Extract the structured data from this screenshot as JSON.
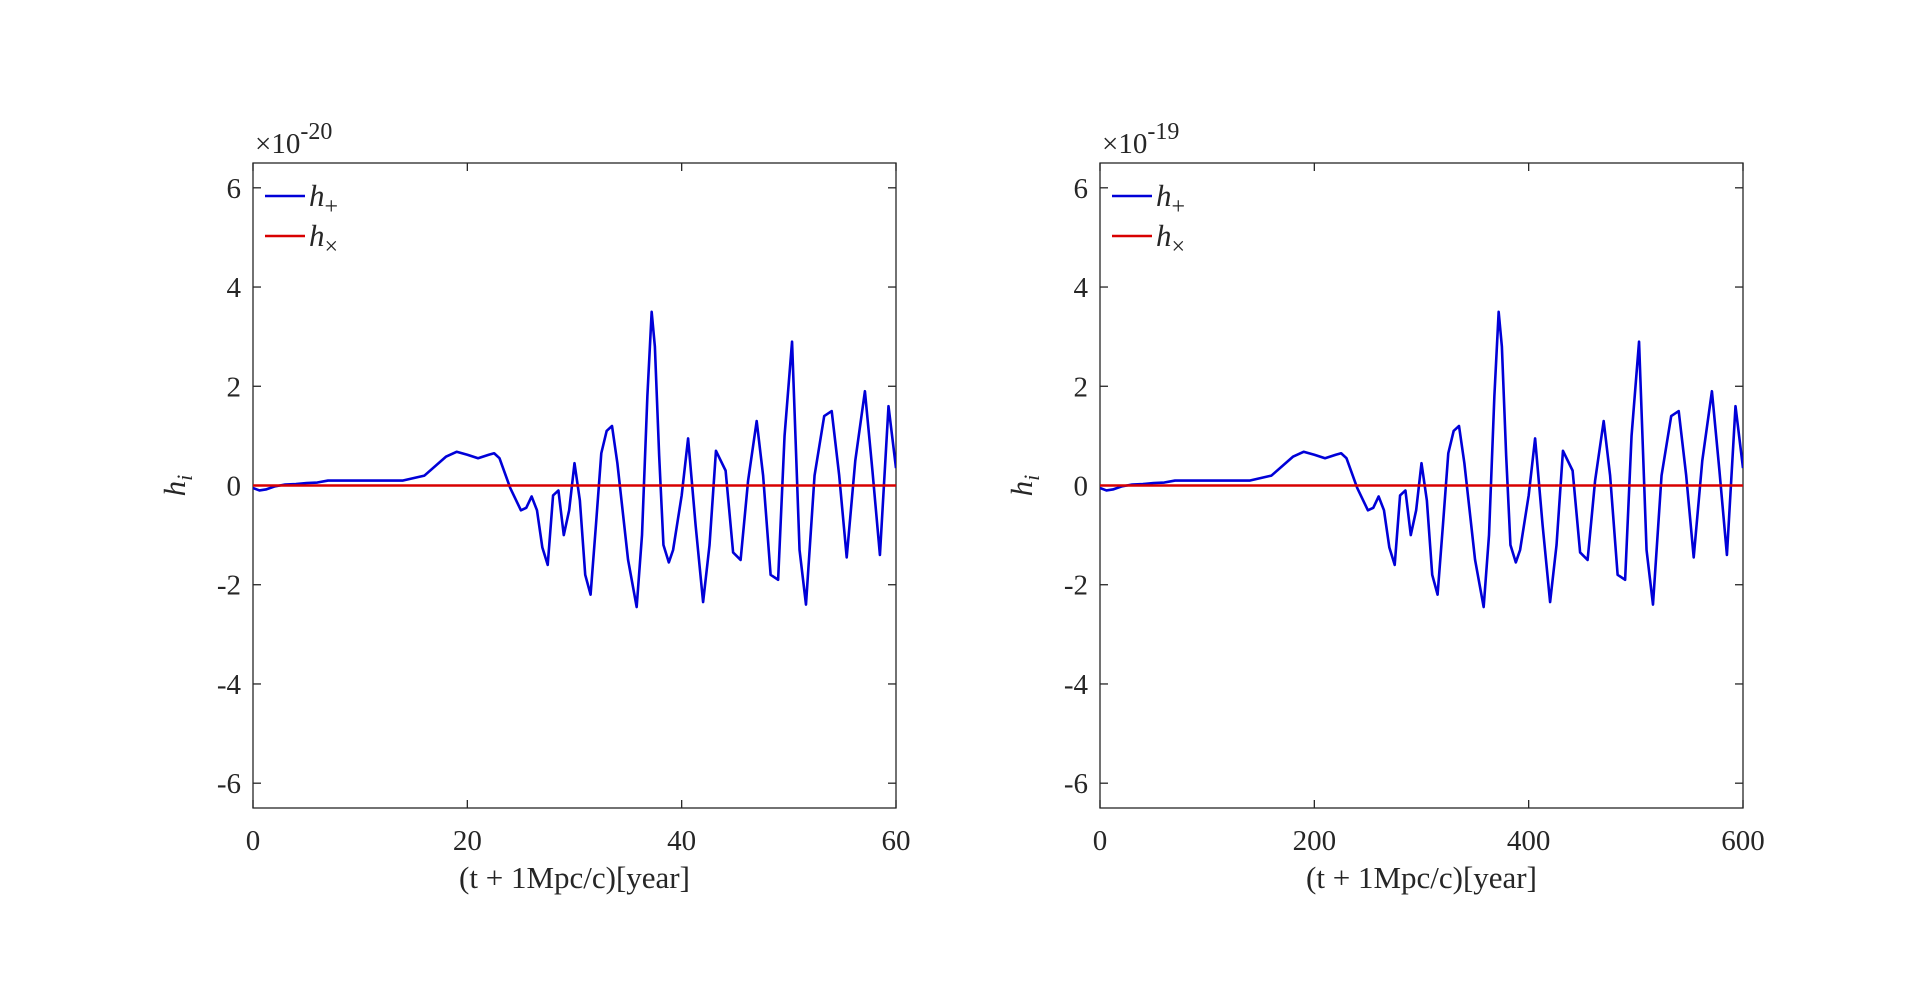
{
  "chart_data": [
    {
      "type": "line",
      "xlabel": "(t + 1Mpc/c)[year]",
      "ylabel": "h",
      "ylabel_sub": "i",
      "y_multiplier": "×10",
      "y_exponent": "-20",
      "xlim": [
        0,
        60
      ],
      "ylim": [
        -6.5,
        6.5
      ],
      "xticks": [
        0,
        20,
        40,
        60
      ],
      "xtick_labels": [
        "0",
        "20",
        "40",
        "60"
      ],
      "yticks": [
        -6,
        -4,
        -2,
        0,
        2,
        4,
        6
      ],
      "ytick_labels": [
        "-6",
        "-4",
        "-2",
        "0",
        "2",
        "4",
        "6"
      ],
      "grid": false,
      "legend_position": "top-left",
      "series": [
        {
          "name": "h",
          "name_sub": "+",
          "color": "#0000d8",
          "x": [
            0,
            0.6,
            1.2,
            2,
            3,
            4,
            5,
            6,
            7,
            8,
            10,
            12,
            14,
            16,
            18,
            19,
            20,
            21,
            22,
            22.5,
            23,
            24,
            25,
            25.5,
            26,
            26.5,
            27,
            27.5,
            28,
            28.5,
            29,
            29.5,
            30,
            30.5,
            31,
            31.5,
            32,
            32.5,
            33,
            33.5,
            34,
            35,
            35.8,
            36.3,
            36.8,
            37.2,
            37.5,
            37.9,
            38.3,
            38.8,
            39.2,
            40,
            40.6,
            41.3,
            42,
            42.6,
            43.2,
            44.1,
            44.8,
            45.5,
            46.2,
            47,
            47.6,
            48.3,
            49,
            49.6,
            50.3,
            51,
            51.6,
            52.4,
            53.3,
            54,
            54.7,
            55.4,
            56.2,
            57.1,
            57.8,
            58.5,
            59.3,
            60
          ],
          "y": [
            -0.05,
            -0.1,
            -0.08,
            -0.02,
            0.02,
            0.03,
            0.05,
            0.06,
            0.1,
            0.1,
            0.1,
            0.1,
            0.1,
            0.2,
            0.58,
            0.68,
            0.62,
            0.55,
            0.62,
            0.65,
            0.55,
            -0.05,
            -0.5,
            -0.45,
            -0.22,
            -0.5,
            -1.25,
            -1.6,
            -0.2,
            -0.1,
            -1.0,
            -0.5,
            0.45,
            -0.3,
            -1.8,
            -2.2,
            -0.8,
            0.65,
            1.1,
            1.2,
            0.45,
            -1.5,
            -2.45,
            -1.0,
            1.8,
            3.5,
            2.8,
            0.6,
            -1.2,
            -1.55,
            -1.3,
            -0.2,
            0.95,
            -0.8,
            -2.35,
            -1.2,
            0.7,
            0.3,
            -1.35,
            -1.5,
            0.1,
            1.3,
            0.2,
            -1.8,
            -1.9,
            1.0,
            2.9,
            -1.3,
            -2.4,
            0.2,
            1.4,
            1.5,
            0.2,
            -1.45,
            0.5,
            1.9,
            0.3,
            -1.4,
            1.6,
            0.35
          ]
        },
        {
          "name": "h",
          "name_sub": "×",
          "color": "#d80000",
          "x": [
            0,
            60
          ],
          "y": [
            0,
            0
          ]
        }
      ]
    },
    {
      "type": "line",
      "xlabel": "(t + 1Mpc/c)[year]",
      "ylabel": "h",
      "ylabel_sub": "i",
      "y_multiplier": "×10",
      "y_exponent": "-19",
      "xlim": [
        0,
        600
      ],
      "ylim": [
        -6.5,
        6.5
      ],
      "xticks": [
        0,
        200,
        400,
        600
      ],
      "xtick_labels": [
        "0",
        "200",
        "400",
        "600"
      ],
      "yticks": [
        -6,
        -4,
        -2,
        0,
        2,
        4,
        6
      ],
      "ytick_labels": [
        "-6",
        "-4",
        "-2",
        "0",
        "2",
        "4",
        "6"
      ],
      "grid": false,
      "legend_position": "top-left",
      "series": [
        {
          "name": "h",
          "name_sub": "+",
          "color": "#0000d8",
          "x": [
            0,
            6,
            12,
            20,
            30,
            40,
            50,
            60,
            70,
            80,
            100,
            120,
            140,
            160,
            180,
            190,
            200,
            210,
            220,
            225,
            230,
            240,
            250,
            255,
            260,
            265,
            270,
            275,
            280,
            285,
            290,
            295,
            300,
            305,
            310,
            315,
            320,
            325,
            330,
            335,
            340,
            350,
            358,
            363,
            368,
            372,
            375,
            379,
            383,
            388,
            392,
            400,
            406,
            413,
            420,
            426,
            432,
            441,
            448,
            455,
            462,
            470,
            476,
            483,
            490,
            496,
            503,
            510,
            516,
            524,
            533,
            540,
            547,
            554,
            562,
            571,
            578,
            585,
            593,
            600
          ],
          "y": [
            -0.05,
            -0.1,
            -0.08,
            -0.02,
            0.02,
            0.03,
            0.05,
            0.06,
            0.1,
            0.1,
            0.1,
            0.1,
            0.1,
            0.2,
            0.58,
            0.68,
            0.62,
            0.55,
            0.62,
            0.65,
            0.55,
            -0.05,
            -0.5,
            -0.45,
            -0.22,
            -0.5,
            -1.25,
            -1.6,
            -0.2,
            -0.1,
            -1.0,
            -0.5,
            0.45,
            -0.3,
            -1.8,
            -2.2,
            -0.8,
            0.65,
            1.1,
            1.2,
            0.45,
            -1.5,
            -2.45,
            -1.0,
            1.8,
            3.5,
            2.8,
            0.6,
            -1.2,
            -1.55,
            -1.3,
            -0.2,
            0.95,
            -0.8,
            -2.35,
            -1.2,
            0.7,
            0.3,
            -1.35,
            -1.5,
            0.1,
            1.3,
            0.2,
            -1.8,
            -1.9,
            1.0,
            2.9,
            -1.3,
            -2.4,
            0.2,
            1.4,
            1.5,
            0.2,
            -1.45,
            0.5,
            1.9,
            0.3,
            -1.4,
            1.6,
            0.35
          ]
        },
        {
          "name": "h",
          "name_sub": "×",
          "color": "#d80000",
          "x": [
            0,
            600
          ],
          "y": [
            0,
            0
          ]
        }
      ]
    }
  ]
}
